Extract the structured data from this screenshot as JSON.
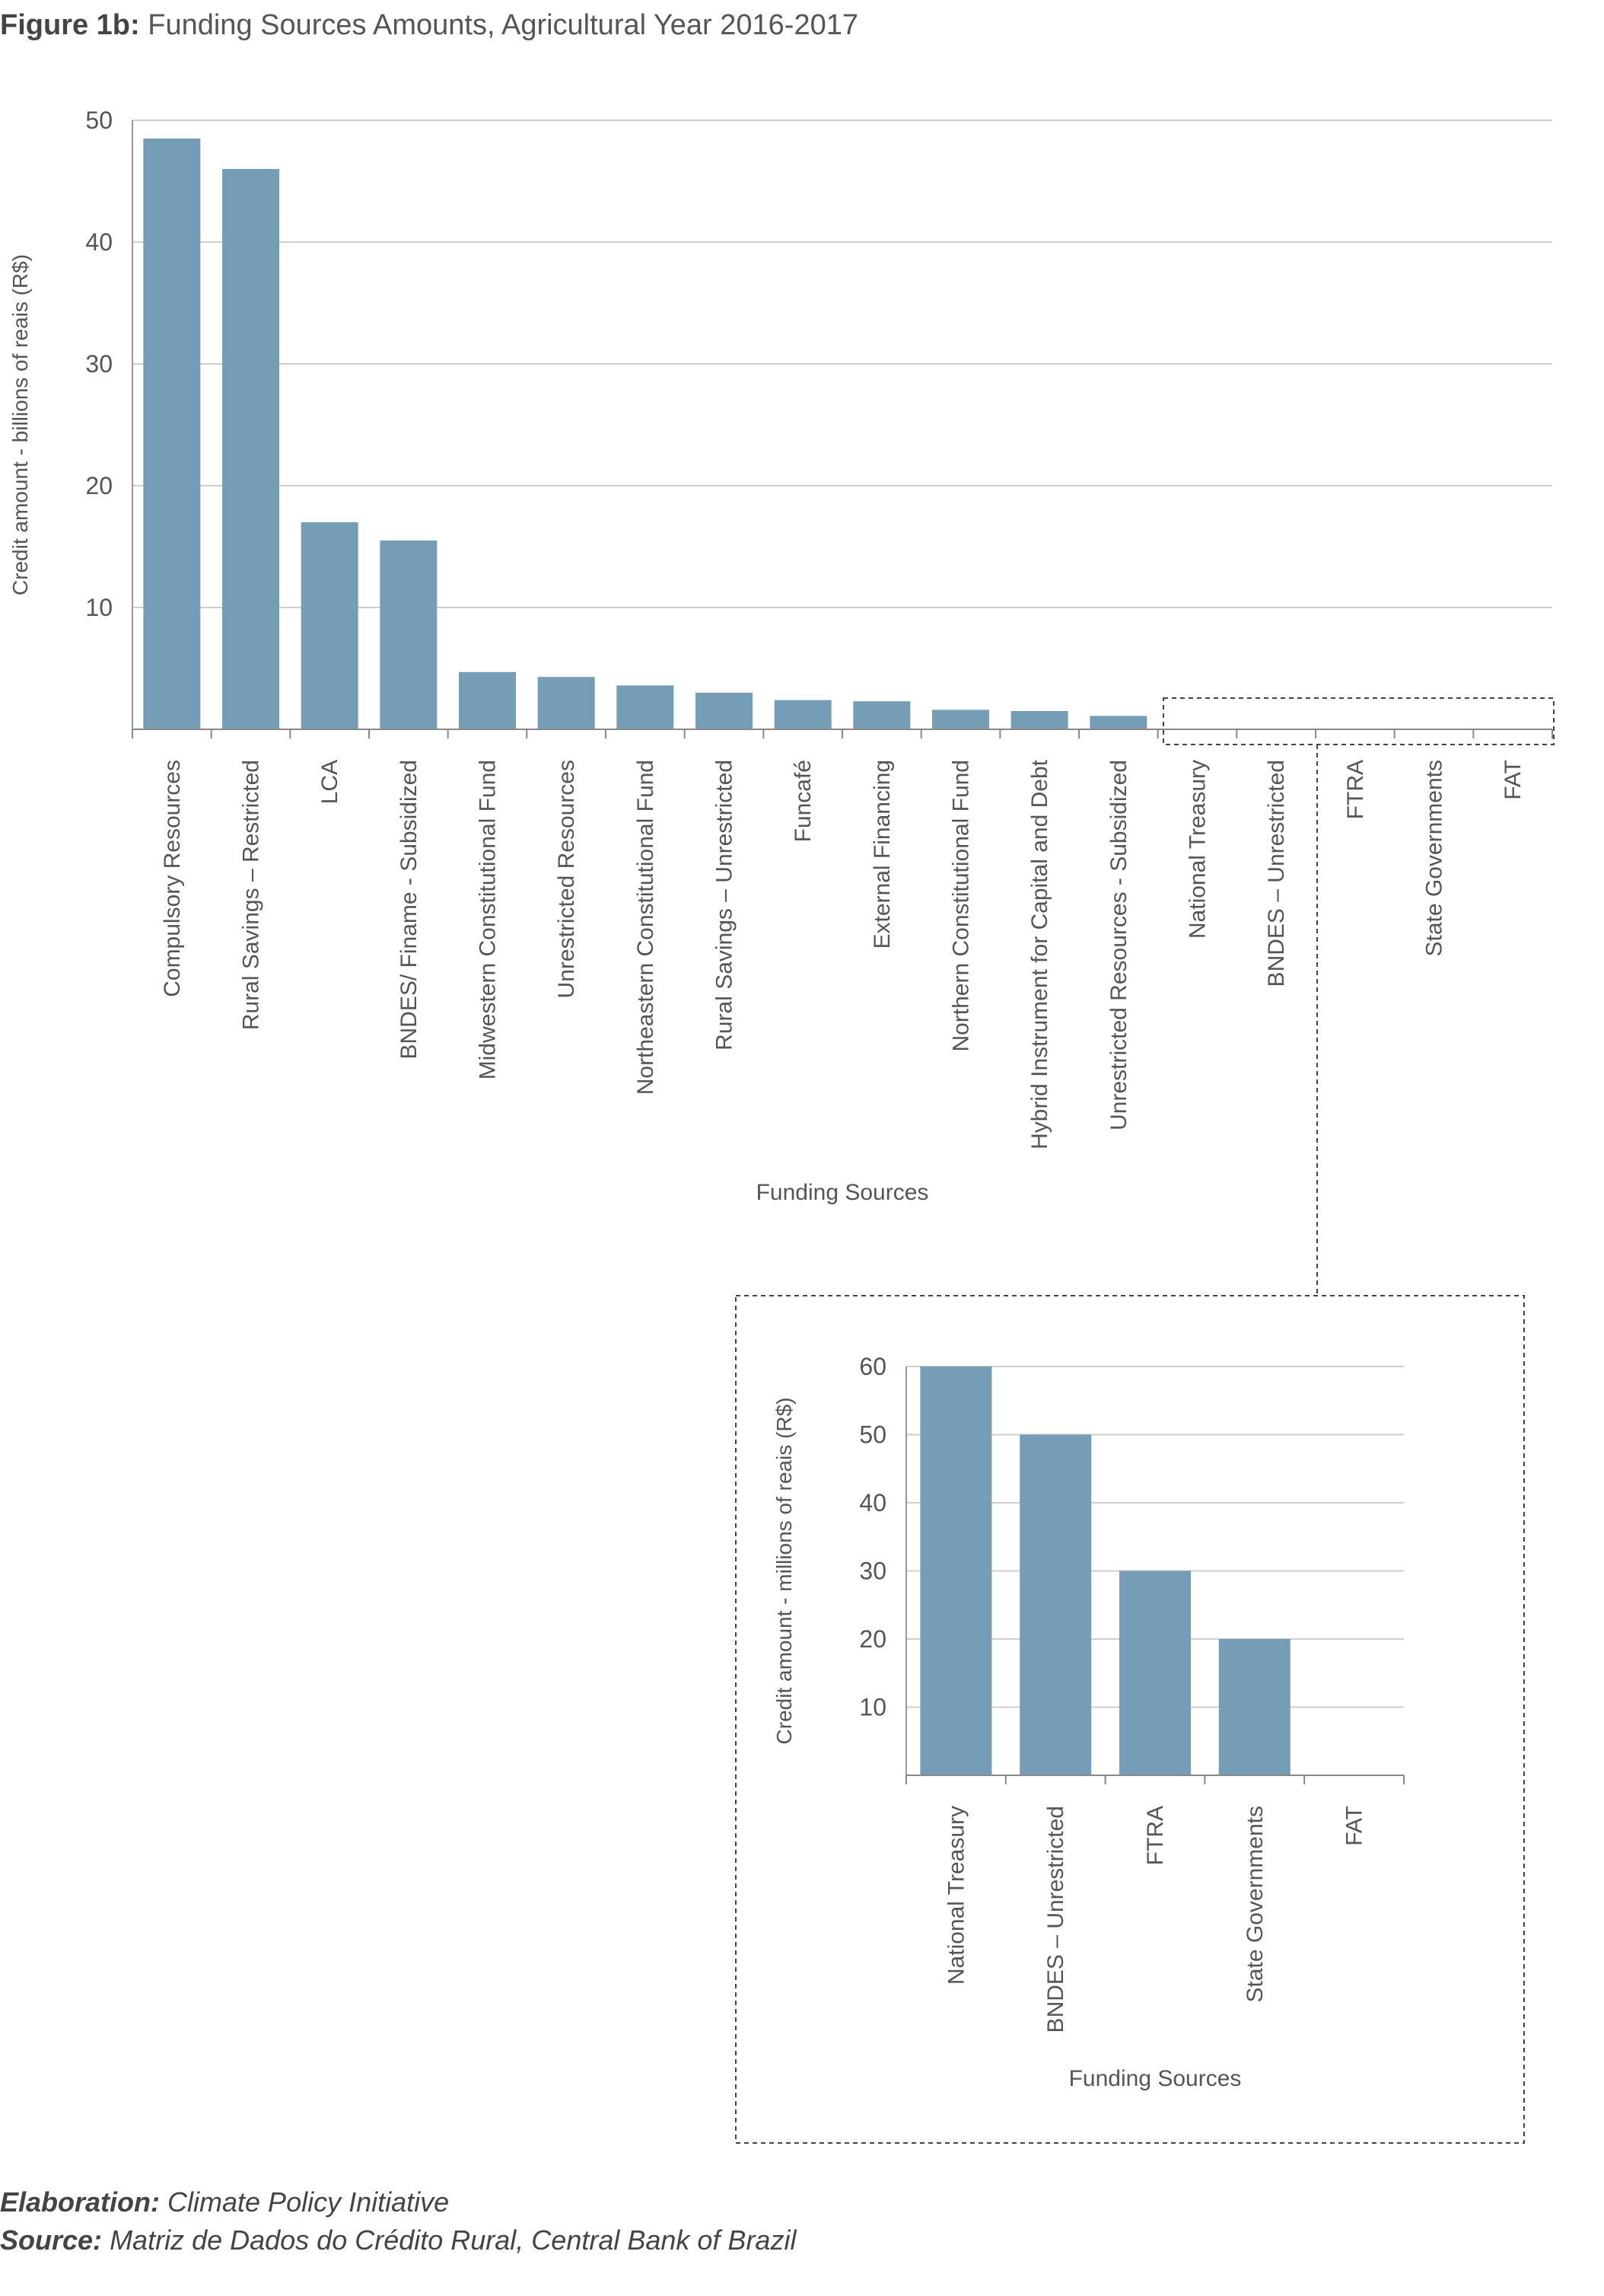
{
  "title": {
    "lead": "Figure 1b:",
    "text": "Funding Sources Amounts, Agricultural Year 2016-2017"
  },
  "chart_data": [
    {
      "type": "bar",
      "ylabel": "Credit amount - billions of reais (R$)",
      "xlabel": "Funding Sources",
      "ylim": [
        0,
        50
      ],
      "yticks": [
        10,
        20,
        30,
        40,
        50
      ],
      "grid": true,
      "bar_color": "#759eb6",
      "categories": [
        "Compulsory Resources",
        "Rural Savings – Restricted",
        "LCA",
        "BNDES/ Finame - Subsidized",
        "Midwestern Constitutional Fund",
        "Unrestricted Resources",
        "Northeastern Constitutional Fund",
        "Rural Savings – Unrestricted",
        "Funcafé",
        "External Financing",
        "Northern Constitutional Fund",
        "Hybrid Instrument for Capital and Debt",
        "Unrestricted Resources - Subsidized",
        "National Treasury",
        "BNDES – Unrestricted",
        "FTRA",
        "State Governments",
        "FAT"
      ],
      "values": [
        48.5,
        46,
        17,
        15.5,
        4.7,
        4.3,
        3.6,
        3.0,
        2.4,
        2.3,
        1.6,
        1.5,
        1.1,
        0.06,
        0.05,
        0.03,
        0.02,
        0.0
      ]
    },
    {
      "type": "bar",
      "ylabel": "Credit amount - millions of reais (R$)",
      "xlabel": "Funding Sources",
      "ylim": [
        0,
        60
      ],
      "yticks": [
        10,
        20,
        30,
        40,
        50,
        60
      ],
      "grid": true,
      "bar_color": "#759eb6",
      "categories": [
        "National Treasury",
        "BNDES – Unrestricted",
        "FTRA",
        "State Governments",
        "FAT"
      ],
      "values": [
        60,
        50,
        30,
        20,
        0
      ]
    }
  ],
  "footer": {
    "elaboration_label": "Elaboration:",
    "elaboration_value": "Climate Policy Initiative",
    "source_label": "Source:",
    "source_value": "Matriz de Dados do Crédito Rural, Central Bank of Brazil"
  }
}
